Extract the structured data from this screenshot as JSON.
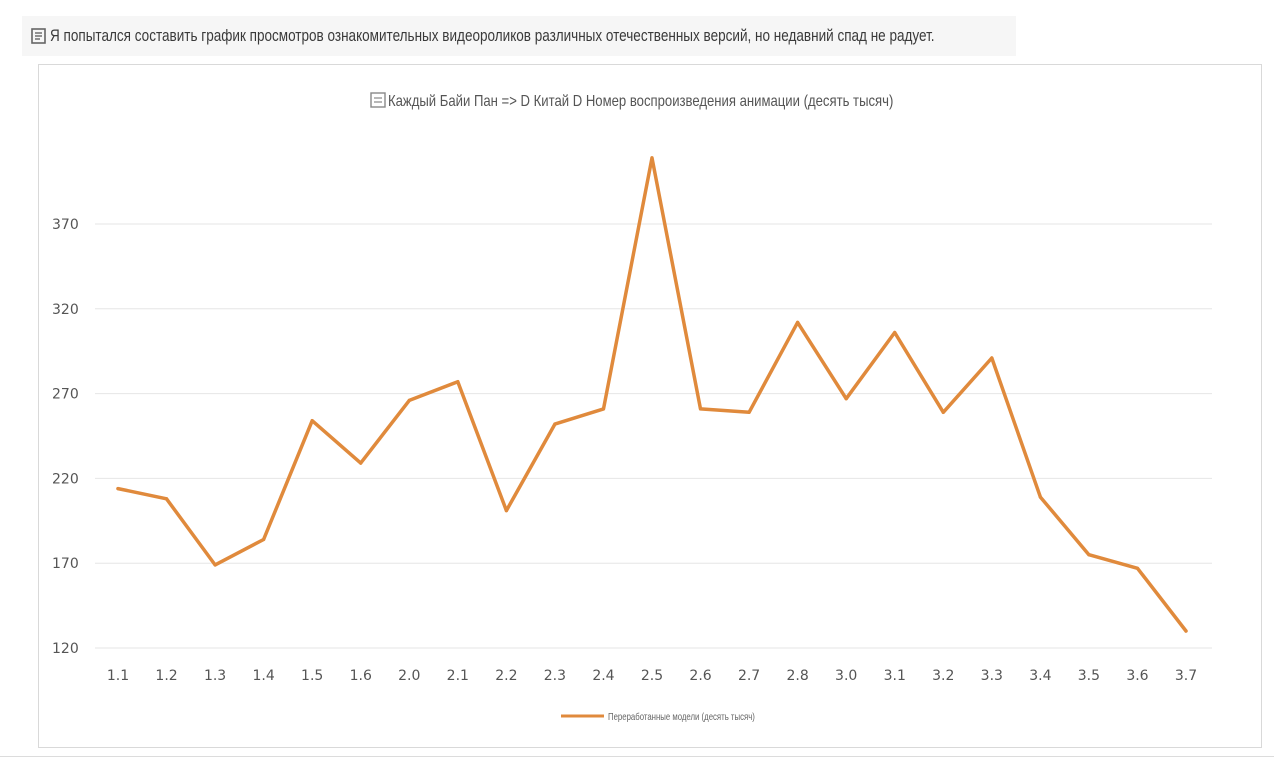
{
  "caption": {
    "icon": "document-icon",
    "text": "Я попытался составить график просмотров ознакомительных видеороликов различных отечественных версий, но недавний спад не радует."
  },
  "chart_data": {
    "type": "line",
    "title": "Каждый Байи Пан => D Китай D Номер воспроизведения анимации (десять тысяч)",
    "categories": [
      "1.1",
      "1.2",
      "1.3",
      "1.4",
      "1.5",
      "1.6",
      "2.0",
      "2.1",
      "2.2",
      "2.3",
      "2.4",
      "2.5",
      "2.6",
      "2.7",
      "2.8",
      "3.0",
      "3.1",
      "3.2",
      "3.3",
      "3.4",
      "3.5",
      "3.6",
      "3.7"
    ],
    "series": [
      {
        "name": "Переработанные модели (десять тысяч)",
        "color": "#e08a3c",
        "values": [
          214,
          208,
          169,
          184,
          254,
          229,
          266,
          277,
          201,
          252,
          261,
          409,
          261,
          259,
          312,
          267,
          306,
          259,
          291,
          209,
          175,
          167,
          130
        ]
      }
    ],
    "yticks": [
      120,
      170,
      220,
      270,
      320,
      370
    ],
    "ylim": [
      120,
      420
    ],
    "grid": true,
    "legend_position": "bottom"
  }
}
